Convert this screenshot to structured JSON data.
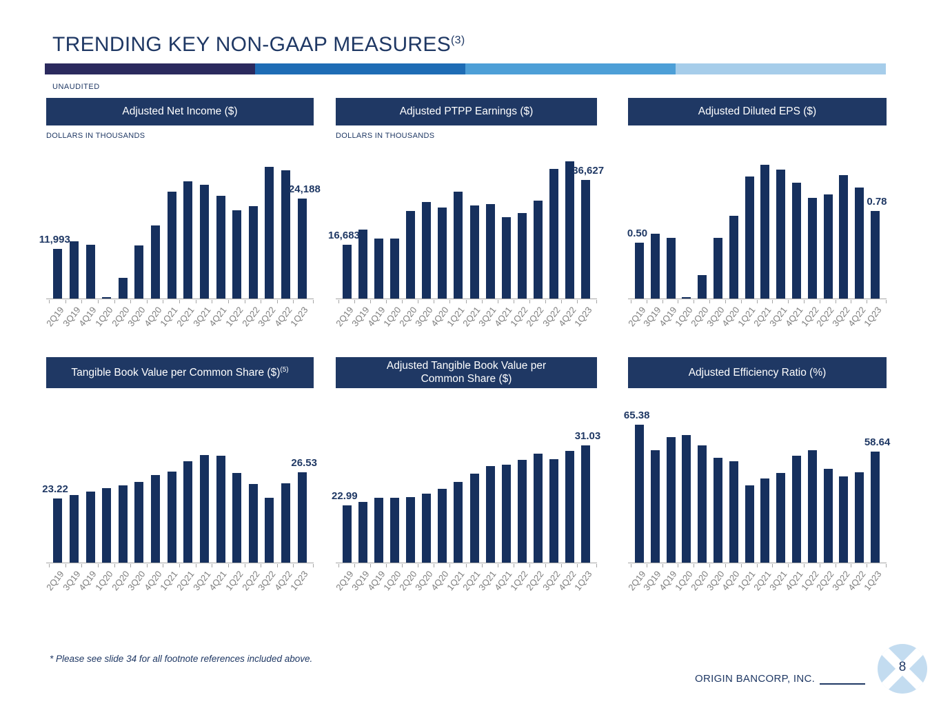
{
  "slide": {
    "title": "TRENDING KEY NON-GAAP MEASURES",
    "title_superscript": "(3)",
    "unaudited_label": "UNAUDITED",
    "footnote": "* Please see slide 34 for all footnote references included above.",
    "footer_company": "ORIGIN BANCORP, INC.",
    "page_number": "8",
    "accent_colors": [
      "#2B2A5E",
      "#1E6CB5",
      "#4D9FD7",
      "#A6CDEA"
    ],
    "navy": "#1F3864",
    "bar_navy": "#16305E",
    "axis_gray": "#a6a6a6",
    "label_gray": "#7f7f7f",
    "logo_blue": "#C3DCF0"
  },
  "chart_data": [
    {
      "type": "bar",
      "title": "Adjusted Net Income ($)",
      "title_superscript": "",
      "subtitle": "DOLLARS IN THOUSANDS",
      "categories": [
        "2Q19",
        "3Q19",
        "4Q19",
        "1Q20",
        "2Q20",
        "3Q20",
        "4Q20",
        "1Q21",
        "2Q21",
        "3Q21",
        "4Q21",
        "1Q22",
        "2Q22",
        "3Q22",
        "4Q22",
        "1Q23"
      ],
      "values": [
        11993,
        13800,
        13000,
        400,
        5000,
        12900,
        17650,
        25900,
        28400,
        27500,
        24800,
        21400,
        22400,
        31900,
        31100,
        24188
      ],
      "first_label": "11,993",
      "last_label": "24,188",
      "bar_color": "#16305E",
      "ylim": [
        0,
        34200
      ],
      "grid": false,
      "legend": "none"
    },
    {
      "type": "bar",
      "title": "Adjusted PTPP Earnings ($)",
      "title_superscript": "",
      "subtitle": "DOLLARS IN THOUSANDS",
      "categories": [
        "2Q19",
        "3Q19",
        "4Q19",
        "1Q20",
        "2Q20",
        "3Q20",
        "4Q20",
        "1Q21",
        "2Q21",
        "3Q21",
        "4Q21",
        "1Q22",
        "2Q22",
        "3Q22",
        "4Q22",
        "1Q23"
      ],
      "values": [
        16683,
        21300,
        18450,
        18600,
        27150,
        29900,
        28100,
        33100,
        28850,
        29200,
        25150,
        26400,
        30350,
        40100,
        42400,
        36627
      ],
      "first_label": "16,683",
      "last_label": "36,627",
      "bar_color": "#16305E",
      "ylim": [
        0,
        43700
      ],
      "grid": false,
      "legend": "none"
    },
    {
      "type": "bar",
      "title": "Adjusted Diluted EPS ($)",
      "title_superscript": "",
      "subtitle": "",
      "categories": [
        "2Q19",
        "3Q19",
        "4Q19",
        "1Q20",
        "2Q20",
        "3Q20",
        "4Q20",
        "1Q21",
        "2Q21",
        "3Q21",
        "4Q21",
        "1Q22",
        "2Q22",
        "3Q22",
        "4Q22",
        "1Q23"
      ],
      "values": [
        0.5,
        0.58,
        0.54,
        0.01,
        0.21,
        0.54,
        0.74,
        1.09,
        1.19,
        1.15,
        1.03,
        0.9,
        0.93,
        1.1,
        0.99,
        0.78
      ],
      "first_label": "0.50",
      "last_label": "0.78",
      "bar_color": "#16305E",
      "ylim": [
        0,
        1.26
      ],
      "grid": false,
      "legend": "none"
    },
    {
      "type": "bar",
      "title": "Tangible Book Value per Common Share ($)",
      "title_superscript": "(5)",
      "subtitle": "",
      "categories": [
        "2Q19",
        "3Q19",
        "4Q19",
        "1Q20",
        "2Q20",
        "3Q20",
        "4Q20",
        "1Q21",
        "2Q21",
        "3Q21",
        "4Q21",
        "1Q22",
        "2Q22",
        "3Q22",
        "4Q22",
        "1Q23"
      ],
      "values": [
        23.22,
        23.6,
        24.1,
        24.5,
        24.9,
        25.3,
        26.2,
        26.6,
        27.9,
        28.7,
        28.6,
        26.4,
        25.0,
        23.3,
        25.1,
        26.53
      ],
      "first_label": "23.22",
      "last_label": "26.53",
      "bar_color": "#16305E",
      "ylim": [
        15,
        32.6
      ],
      "grid": false,
      "legend": "none"
    },
    {
      "type": "bar",
      "title": "Adjusted Tangible Book Value per\nCommon Share ($)",
      "title_superscript": "",
      "subtitle": "",
      "categories": [
        "2Q19",
        "3Q19",
        "4Q19",
        "1Q20",
        "2Q20",
        "3Q20",
        "4Q20",
        "1Q21",
        "2Q21",
        "3Q21",
        "4Q21",
        "1Q22",
        "2Q22",
        "3Q22",
        "4Q22",
        "1Q23"
      ],
      "values": [
        22.99,
        23.4,
        24.0,
        24.0,
        24.1,
        24.5,
        25.2,
        26.1,
        27.2,
        28.2,
        28.4,
        29.1,
        29.9,
        29.2,
        30.3,
        31.03
      ],
      "first_label": "22.99",
      "last_label": "31.03",
      "bar_color": "#16305E",
      "ylim": [
        15.25,
        33.8
      ],
      "grid": false,
      "legend": "none"
    },
    {
      "type": "bar",
      "title": "Adjusted Efficiency Ratio (%)",
      "title_superscript": "",
      "subtitle": "",
      "categories": [
        "2Q19",
        "3Q19",
        "4Q19",
        "1Q20",
        "2Q20",
        "3Q20",
        "4Q20",
        "1Q21",
        "2Q21",
        "3Q21",
        "4Q21",
        "1Q22",
        "2Q22",
        "3Q22",
        "4Q22",
        "1Q23"
      ],
      "values": [
        65.38,
        59.0,
        62.4,
        62.9,
        60.3,
        57.1,
        56.2,
        50.2,
        51.9,
        53.3,
        57.6,
        59.1,
        54.4,
        52.5,
        53.4,
        58.64
      ],
      "first_label": "65.38",
      "last_label": "58.64",
      "bar_color": "#16305E",
      "ylim": [
        30.8,
        66.3
      ],
      "grid": false,
      "legend": "none"
    }
  ]
}
